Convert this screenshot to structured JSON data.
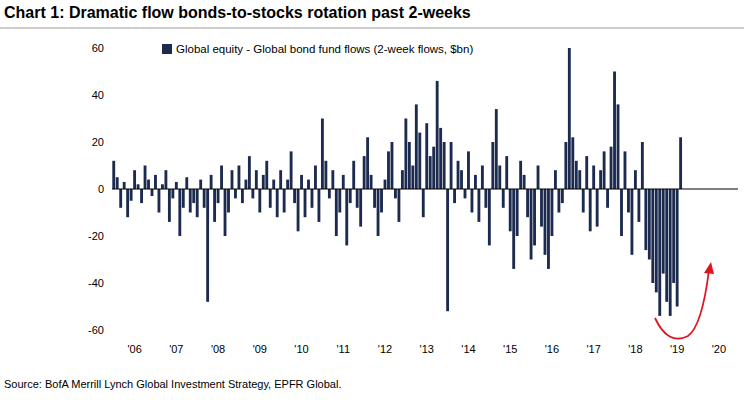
{
  "chart_data": {
    "type": "bar",
    "title": "Chart 1: Dramatic flow bonds-to-stocks rotation past 2-weeks",
    "source": "Source: BofA Merrill Lynch Global Investment Strategy, EPFR Global.",
    "legend": "top-left",
    "grid": false,
    "categories": [
      null,
      null,
      null,
      null,
      null,
      null,
      "'06",
      null,
      null,
      null,
      null,
      null,
      null,
      null,
      null,
      null,
      null,
      null,
      "'07",
      null,
      null,
      null,
      null,
      null,
      null,
      null,
      null,
      null,
      null,
      null,
      "'08",
      null,
      null,
      null,
      null,
      null,
      null,
      null,
      null,
      null,
      null,
      null,
      "'09",
      null,
      null,
      null,
      null,
      null,
      null,
      null,
      null,
      null,
      null,
      null,
      "'10",
      null,
      null,
      null,
      null,
      null,
      null,
      null,
      null,
      null,
      null,
      null,
      "'11",
      null,
      null,
      null,
      null,
      null,
      null,
      null,
      null,
      null,
      null,
      null,
      "'12",
      null,
      null,
      null,
      null,
      null,
      null,
      null,
      null,
      null,
      null,
      null,
      "'13",
      null,
      null,
      null,
      null,
      null,
      null,
      null,
      null,
      null,
      null,
      null,
      "'14",
      null,
      null,
      null,
      null,
      null,
      null,
      null,
      null,
      null,
      null,
      null,
      "'15",
      null,
      null,
      null,
      null,
      null,
      null,
      null,
      null,
      null,
      null,
      null,
      "'16",
      null,
      null,
      null,
      null,
      null,
      null,
      null,
      null,
      null,
      null,
      null,
      "'17",
      null,
      null,
      null,
      null,
      null,
      null,
      null,
      null,
      null,
      null,
      null,
      "'18",
      null,
      null,
      null,
      null,
      null,
      null,
      null,
      null,
      null,
      null,
      null,
      "'19",
      null,
      null,
      null,
      null,
      null,
      null,
      null,
      null,
      null,
      null,
      null,
      "'20",
      null,
      null,
      null,
      null,
      null
    ],
    "series": [
      {
        "name": "Global equity - Global bond fund flows (2-week flows, $bn)",
        "color": "#1b2a4e",
        "values": [
          12,
          5,
          -8,
          3,
          -12,
          -5,
          8,
          2,
          -6,
          10,
          4,
          -3,
          6,
          -10,
          2,
          8,
          -14,
          -4,
          3,
          -20,
          -8,
          5,
          -10,
          -6,
          -12,
          4,
          -8,
          -48,
          6,
          -14,
          -6,
          10,
          -20,
          -10,
          8,
          -4,
          10,
          -6,
          4,
          14,
          -4,
          8,
          -10,
          6,
          12,
          -8,
          4,
          -12,
          8,
          -10,
          4,
          16,
          -6,
          -18,
          6,
          -12,
          4,
          -8,
          10,
          -14,
          30,
          12,
          -4,
          8,
          -20,
          -10,
          6,
          -24,
          -6,
          12,
          -8,
          -16,
          14,
          22,
          6,
          -8,
          -20,
          -10,
          4,
          16,
          20,
          -4,
          -14,
          8,
          30,
          20,
          10,
          36,
          24,
          -12,
          28,
          14,
          18,
          46,
          26,
          20,
          -52,
          20,
          -6,
          12,
          8,
          -4,
          16,
          -10,
          6,
          -14,
          10,
          -8,
          -24,
          20,
          34,
          10,
          -8,
          14,
          -18,
          -34,
          -20,
          12,
          6,
          -12,
          -30,
          -24,
          10,
          -16,
          -28,
          -34,
          -20,
          8,
          -10,
          -6,
          20,
          60,
          22,
          12,
          8,
          -10,
          14,
          -18,
          10,
          -16,
          8,
          16,
          -8,
          18,
          50,
          36,
          -20,
          16,
          -10,
          -28,
          8,
          -14,
          20,
          -26,
          -30,
          -40,
          -44,
          -54,
          -36,
          -48,
          -54,
          -40,
          -50,
          22,
          null,
          null,
          null,
          null,
          null,
          null,
          null,
          null,
          null,
          null,
          null,
          null,
          null,
          null,
          null,
          null
        ]
      }
    ],
    "ylim": [
      -60,
      60
    ],
    "yticks": [
      -60,
      -40,
      -20,
      0,
      20,
      40,
      60
    ]
  }
}
